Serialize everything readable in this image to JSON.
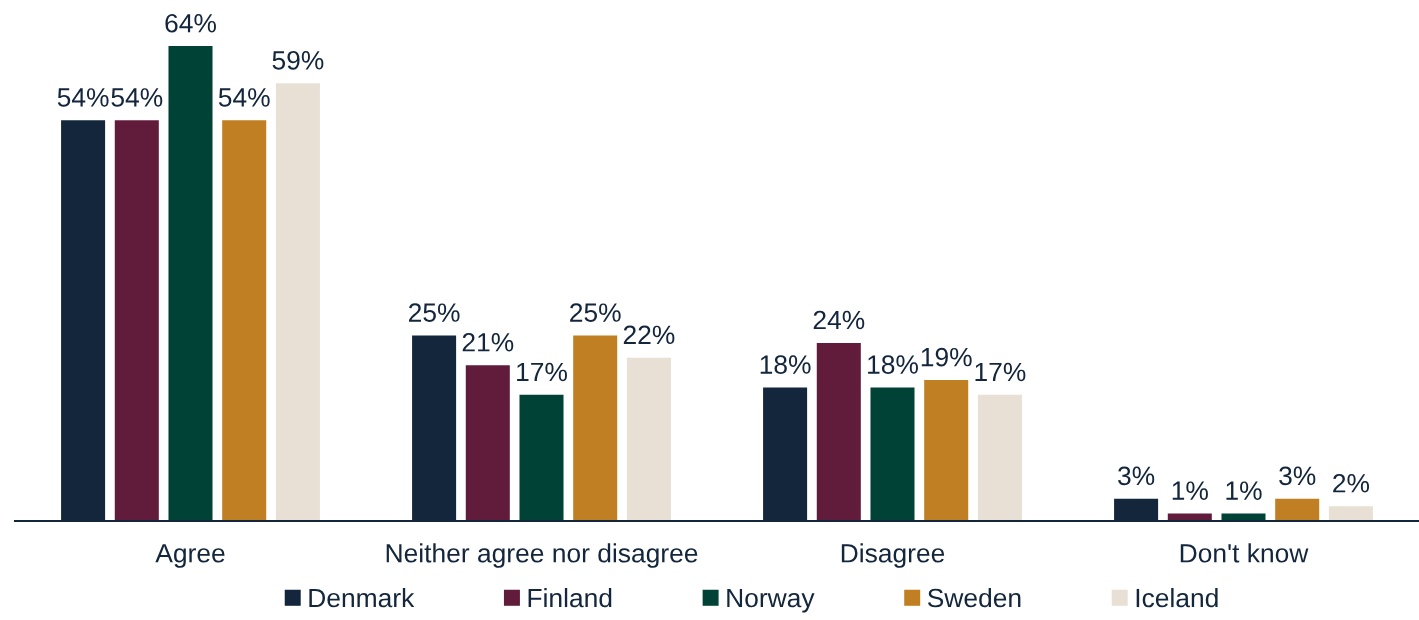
{
  "chart_data": {
    "type": "bar",
    "categories": [
      "Agree",
      "Neither agree nor disagree",
      "Disagree",
      "Don't know"
    ],
    "series": [
      {
        "name": "Denmark",
        "color": "#13263b",
        "values": [
          54,
          25,
          18,
          3
        ],
        "value_labels": [
          "54%",
          "25%",
          "18%",
          "3%"
        ]
      },
      {
        "name": "Finland",
        "color": "#621c3b",
        "values": [
          54,
          21,
          24,
          1
        ],
        "value_labels": [
          "54%",
          "21%",
          "24%",
          "1%"
        ]
      },
      {
        "name": "Norway",
        "color": "#004236",
        "values": [
          64,
          17,
          18,
          1
        ],
        "value_labels": [
          "64%",
          "17%",
          "18%",
          "1%"
        ]
      },
      {
        "name": "Sweden",
        "color": "#c07f22",
        "values": [
          54,
          25,
          19,
          3
        ],
        "value_labels": [
          "54%",
          "25%",
          "19%",
          "3%"
        ]
      },
      {
        "name": "Iceland",
        "color": "#e8e0d5",
        "values": [
          59,
          22,
          17,
          2
        ],
        "value_labels": [
          "59%",
          "22%",
          "17%",
          "2%"
        ]
      }
    ],
    "legend": "bottom",
    "tick_labels": "x"
  }
}
